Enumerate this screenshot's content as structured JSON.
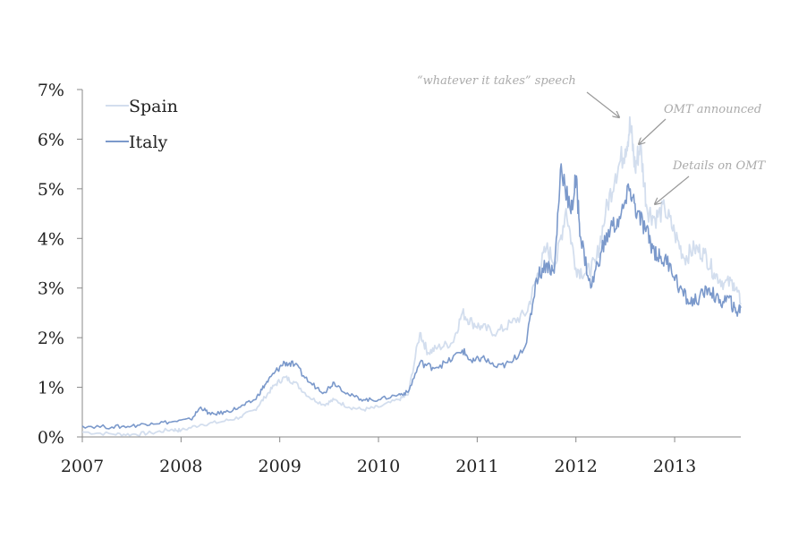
{
  "chart_data": {
    "type": "line",
    "title": "",
    "xlabel": "",
    "ylabel": "",
    "xlim": [
      2007.0,
      2013.67
    ],
    "ylim": [
      0,
      7
    ],
    "x_ticks": [
      "2007",
      "2008",
      "2009",
      "2010",
      "2011",
      "2012",
      "2013"
    ],
    "y_ticks": [
      "0%",
      "1%",
      "2%",
      "3%",
      "4%",
      "5%",
      "6%",
      "7%"
    ],
    "grid": false,
    "legend": "top-left",
    "series": [
      {
        "name": "Spain",
        "color": "#d3deee",
        "points": [
          [
            2007.0,
            0.1
          ],
          [
            2007.3,
            0.06
          ],
          [
            2007.5,
            0.05
          ],
          [
            2007.7,
            0.08
          ],
          [
            2007.9,
            0.15
          ],
          [
            2008.0,
            0.13
          ],
          [
            2008.2,
            0.25
          ],
          [
            2008.4,
            0.3
          ],
          [
            2008.6,
            0.4
          ],
          [
            2008.75,
            0.55
          ],
          [
            2008.85,
            0.8
          ],
          [
            2008.95,
            1.05
          ],
          [
            2009.05,
            1.2
          ],
          [
            2009.15,
            1.1
          ],
          [
            2009.3,
            0.8
          ],
          [
            2009.45,
            0.65
          ],
          [
            2009.55,
            0.75
          ],
          [
            2009.7,
            0.6
          ],
          [
            2009.85,
            0.55
          ],
          [
            2010.0,
            0.6
          ],
          [
            2010.2,
            0.75
          ],
          [
            2010.3,
            0.85
          ],
          [
            2010.42,
            2.1
          ],
          [
            2010.5,
            1.7
          ],
          [
            2010.6,
            1.8
          ],
          [
            2010.75,
            1.9
          ],
          [
            2010.85,
            2.5
          ],
          [
            2010.95,
            2.3
          ],
          [
            2011.05,
            2.2
          ],
          [
            2011.2,
            2.1
          ],
          [
            2011.35,
            2.3
          ],
          [
            2011.5,
            2.5
          ],
          [
            2011.6,
            3.2
          ],
          [
            2011.7,
            3.8
          ],
          [
            2011.8,
            3.5
          ],
          [
            2011.9,
            4.6
          ],
          [
            2012.0,
            3.4
          ],
          [
            2012.1,
            3.3
          ],
          [
            2012.2,
            3.5
          ],
          [
            2012.3,
            4.5
          ],
          [
            2012.4,
            5.3
          ],
          [
            2012.5,
            5.8
          ],
          [
            2012.55,
            6.3
          ],
          [
            2012.6,
            5.4
          ],
          [
            2012.65,
            5.9
          ],
          [
            2012.72,
            4.6
          ],
          [
            2012.8,
            4.4
          ],
          [
            2012.9,
            4.6
          ],
          [
            2013.0,
            4.1
          ],
          [
            2013.1,
            3.6
          ],
          [
            2013.2,
            3.8
          ],
          [
            2013.3,
            3.7
          ],
          [
            2013.4,
            3.3
          ],
          [
            2013.5,
            3.1
          ],
          [
            2013.6,
            3.1
          ],
          [
            2013.67,
            2.7
          ]
        ]
      },
      {
        "name": "Italy",
        "color": "#7b99cb",
        "points": [
          [
            2007.0,
            0.22
          ],
          [
            2007.3,
            0.2
          ],
          [
            2007.5,
            0.22
          ],
          [
            2007.7,
            0.28
          ],
          [
            2007.9,
            0.3
          ],
          [
            2008.1,
            0.35
          ],
          [
            2008.2,
            0.6
          ],
          [
            2008.3,
            0.45
          ],
          [
            2008.45,
            0.5
          ],
          [
            2008.6,
            0.6
          ],
          [
            2008.75,
            0.75
          ],
          [
            2008.85,
            1.05
          ],
          [
            2008.95,
            1.3
          ],
          [
            2009.05,
            1.5
          ],
          [
            2009.15,
            1.45
          ],
          [
            2009.3,
            1.1
          ],
          [
            2009.45,
            0.9
          ],
          [
            2009.55,
            1.1
          ],
          [
            2009.7,
            0.85
          ],
          [
            2009.85,
            0.75
          ],
          [
            2010.0,
            0.75
          ],
          [
            2010.2,
            0.85
          ],
          [
            2010.3,
            0.9
          ],
          [
            2010.42,
            1.5
          ],
          [
            2010.55,
            1.4
          ],
          [
            2010.7,
            1.5
          ],
          [
            2010.85,
            1.75
          ],
          [
            2010.95,
            1.5
          ],
          [
            2011.05,
            1.6
          ],
          [
            2011.2,
            1.4
          ],
          [
            2011.35,
            1.5
          ],
          [
            2011.5,
            1.9
          ],
          [
            2011.6,
            3.2
          ],
          [
            2011.7,
            3.5
          ],
          [
            2011.78,
            3.3
          ],
          [
            2011.85,
            5.5
          ],
          [
            2011.95,
            4.5
          ],
          [
            2012.0,
            5.2
          ],
          [
            2012.05,
            4.0
          ],
          [
            2012.15,
            3.0
          ],
          [
            2012.25,
            3.7
          ],
          [
            2012.35,
            4.2
          ],
          [
            2012.45,
            4.4
          ],
          [
            2012.55,
            5.0
          ],
          [
            2012.62,
            4.5
          ],
          [
            2012.7,
            4.2
          ],
          [
            2012.78,
            3.8
          ],
          [
            2012.85,
            3.6
          ],
          [
            2012.95,
            3.5
          ],
          [
            2013.05,
            3.0
          ],
          [
            2013.15,
            2.7
          ],
          [
            2013.25,
            2.8
          ],
          [
            2013.35,
            3.0
          ],
          [
            2013.45,
            2.7
          ],
          [
            2013.55,
            2.8
          ],
          [
            2013.62,
            2.5
          ],
          [
            2013.67,
            2.6
          ]
        ]
      }
    ],
    "annotations": [
      {
        "text": "“whatever it takes” speech",
        "x": 2012.45,
        "y": 6.3
      },
      {
        "text": "OMT announced",
        "x": 2012.62,
        "y": 5.85
      },
      {
        "text": "Details on OMT",
        "x": 2012.78,
        "y": 4.65
      }
    ]
  }
}
